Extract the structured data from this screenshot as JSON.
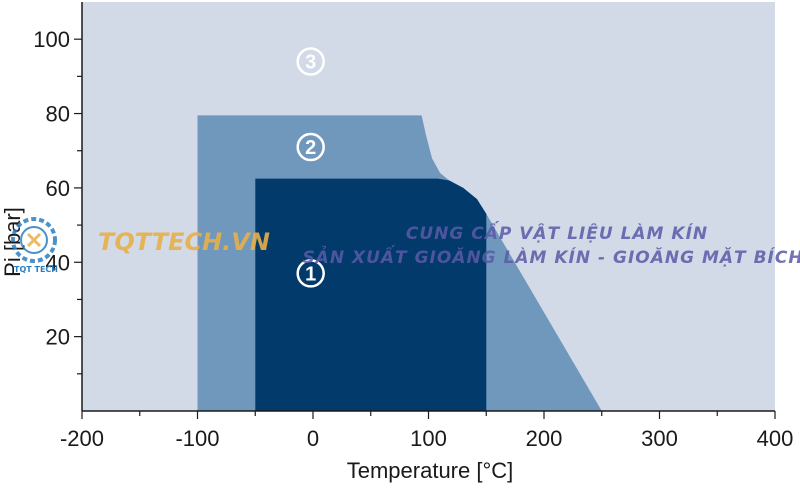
{
  "chart_data": {
    "type": "area",
    "title": "",
    "xlabel": "Temperature [°C]",
    "ylabel": "Pi [bar]",
    "xlim": [
      -200,
      400
    ],
    "ylim": [
      0,
      110
    ],
    "x_ticks": [
      -200,
      -100,
      0,
      100,
      200,
      300,
      400
    ],
    "y_ticks": [
      20,
      40,
      60,
      80,
      100
    ],
    "grid": false,
    "regions": [
      {
        "label": "3",
        "color": "#d3dae7",
        "label_at": [
          -2,
          94
        ],
        "polygon": [
          [
            -200,
            0
          ],
          [
            400,
            0
          ],
          [
            400,
            110
          ],
          [
            -200,
            110
          ]
        ]
      },
      {
        "label": "2",
        "color": "#7097bc",
        "label_at": [
          -2,
          71
        ],
        "polygon": [
          [
            -100,
            0
          ],
          [
            250,
            0
          ],
          [
            150,
            53
          ],
          [
            142,
            57
          ],
          [
            130,
            60
          ],
          [
            118,
            62
          ],
          [
            110,
            64
          ],
          [
            103,
            68
          ],
          [
            98,
            74
          ],
          [
            94,
            79.5
          ],
          [
            -100,
            79.5
          ]
        ]
      },
      {
        "label": "1",
        "color": "#013a6b",
        "label_at": [
          -2,
          37
        ],
        "polygon": [
          [
            -50,
            0
          ],
          [
            150,
            0
          ],
          [
            150,
            53
          ],
          [
            142,
            57
          ],
          [
            130,
            60
          ],
          [
            118,
            62
          ],
          [
            108,
            62.5
          ],
          [
            -50,
            62.5
          ]
        ]
      }
    ]
  },
  "watermark": {
    "brand": "TQTTECH.VN",
    "logo_text": "TQT TECH",
    "line1": "CUNG CẤP VẬT LIỆU LÀM KÍN",
    "line2": "SẢN XUẤT GIOĂNG LÀM KÍN - GIOĂNG MẶT BÍCH"
  }
}
